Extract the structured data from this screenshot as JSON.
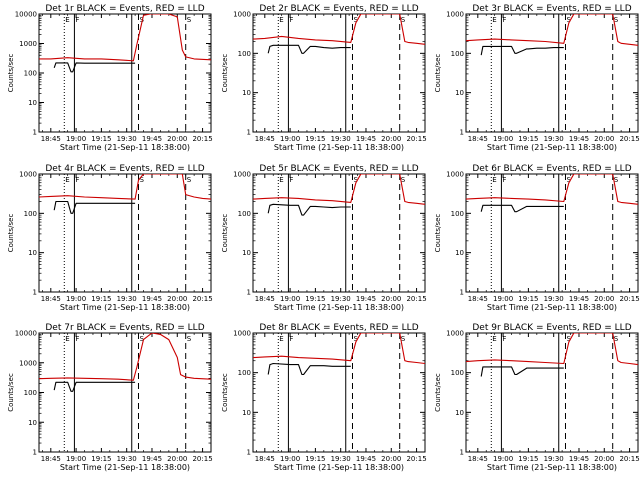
{
  "chart_data": [
    {
      "type": "line",
      "title": "Det 1r BLACK = Events, RED = LLD",
      "xlabel": "Start Time (21-Sep-11 18:38:00)",
      "ylabel": "Counts/sec",
      "yscale": "log",
      "ylim": [
        1,
        10000
      ],
      "xlim": [
        "18:38",
        "20:20"
      ],
      "y_ticks": [
        "1",
        "10",
        "100",
        "1000",
        "10000"
      ],
      "x_ticks": [
        "18:45",
        "19:00",
        "19:15",
        "19:30",
        "19:45",
        "20:00",
        "20:15"
      ],
      "markers": [
        "E",
        "F",
        "S",
        "S"
      ],
      "series": [
        {
          "color": "#000000",
          "x": [
            "18:47",
            "18:48",
            "18:50",
            "18:55",
            "18:57",
            "18:58",
            "19:00",
            "19:05",
            "19:08",
            "19:15",
            "19:20",
            "19:25",
            "19:30",
            "19:34",
            "19:35"
          ],
          "y": [
            150,
            220,
            220,
            220,
            110,
            110,
            220,
            215,
            215,
            215,
            215,
            215,
            215,
            215,
            215
          ]
        },
        {
          "color": "#cc0000",
          "x": [
            "18:38",
            "18:45",
            "18:55",
            "19:05",
            "19:15",
            "19:25",
            "19:34",
            "19:36",
            "19:40",
            "19:44",
            "19:50",
            "19:55",
            "20:00",
            "20:03",
            "20:05",
            "20:10",
            "20:20"
          ],
          "y": [
            300,
            300,
            330,
            300,
            300,
            280,
            260,
            900,
            9000,
            11000,
            11000,
            11000,
            8000,
            600,
            350,
            300,
            280
          ]
        }
      ]
    },
    {
      "type": "line",
      "title": "Det 2r BLACK = Events, RED = LLD",
      "xlabel": "Start Time (21-Sep-11 18:38:00)",
      "ylabel": "Counts/sec",
      "yscale": "log",
      "ylim": [
        1,
        1000
      ],
      "xlim": [
        "18:38",
        "20:20"
      ],
      "y_ticks": [
        "1",
        "10",
        "100",
        "1000"
      ],
      "x_ticks": [
        "18:45",
        "19:00",
        "19:15",
        "19:30",
        "19:45",
        "20:00",
        "20:15"
      ],
      "markers": [
        "E",
        "F",
        "S",
        "S"
      ],
      "series": [
        {
          "color": "#000000",
          "x": [
            "18:47",
            "18:48",
            "18:50",
            "18:55",
            "19:05",
            "19:07",
            "19:08",
            "19:12",
            "19:15",
            "19:20",
            "19:25",
            "19:30",
            "19:36"
          ],
          "y": [
            100,
            150,
            160,
            160,
            160,
            100,
            100,
            150,
            150,
            140,
            135,
            140,
            140
          ]
        },
        {
          "color": "#cc0000",
          "x": [
            "18:38",
            "18:45",
            "18:55",
            "19:05",
            "19:15",
            "19:25",
            "19:36",
            "19:39",
            "19:42",
            "19:50",
            "19:58",
            "20:05",
            "20:08",
            "20:10",
            "20:15",
            "20:20"
          ],
          "y": [
            230,
            240,
            270,
            240,
            220,
            210,
            190,
            600,
            1000,
            1000,
            1000,
            1000,
            200,
            190,
            180,
            170
          ]
        }
      ]
    },
    {
      "type": "line",
      "title": "Det 3r BLACK = Events, RED = LLD",
      "xlabel": "Start Time (21-Sep-11 18:38:00)",
      "ylabel": "Counts/sec",
      "yscale": "log",
      "ylim": [
        1,
        1000
      ],
      "xlim": [
        "18:38",
        "20:20"
      ],
      "y_ticks": [
        "1",
        "10",
        "100",
        "1000"
      ],
      "x_ticks": [
        "18:45",
        "19:00",
        "19:15",
        "19:30",
        "19:45",
        "20:00",
        "20:15"
      ],
      "markers": [
        "E",
        "F",
        "S",
        "S"
      ],
      "series": [
        {
          "color": "#000000",
          "x": [
            "18:47",
            "18:48",
            "18:50",
            "19:00",
            "19:05",
            "19:07",
            "19:08",
            "19:14",
            "19:15",
            "19:20",
            "19:25",
            "19:30",
            "19:36"
          ],
          "y": [
            90,
            150,
            150,
            150,
            150,
            100,
            100,
            130,
            130,
            135,
            135,
            140,
            140
          ]
        },
        {
          "color": "#cc0000",
          "x": [
            "18:38",
            "18:45",
            "18:55",
            "19:05",
            "19:15",
            "19:25",
            "19:36",
            "19:39",
            "19:42",
            "19:50",
            "19:58",
            "20:05",
            "20:08",
            "20:10",
            "20:15",
            "20:20"
          ],
          "y": [
            210,
            220,
            230,
            220,
            210,
            200,
            180,
            600,
            1000,
            1000,
            1000,
            1000,
            200,
            180,
            170,
            160
          ]
        }
      ]
    },
    {
      "type": "line",
      "title": "Det 4r BLACK = Events, RED = LLD",
      "xlabel": "Start Time (21-Sep-11 18:38:00)",
      "ylabel": "Counts/sec",
      "yscale": "log",
      "ylim": [
        1,
        1000
      ],
      "xlim": [
        "18:38",
        "20:20"
      ],
      "y_ticks": [
        "1",
        "10",
        "100",
        "1000"
      ],
      "x_ticks": [
        "18:45",
        "19:00",
        "19:15",
        "19:30",
        "19:45",
        "20:00",
        "20:15"
      ],
      "markers": [
        "E",
        "F",
        "S",
        "S"
      ],
      "series": [
        {
          "color": "#000000",
          "x": [
            "18:47",
            "18:48",
            "18:50",
            "18:55",
            "18:57",
            "18:58",
            "19:00",
            "19:05",
            "19:15",
            "19:25",
            "19:35"
          ],
          "y": [
            120,
            200,
            200,
            200,
            100,
            100,
            180,
            180,
            180,
            180,
            180
          ]
        },
        {
          "color": "#cc0000",
          "x": [
            "18:38",
            "18:45",
            "18:55",
            "19:05",
            "19:15",
            "19:25",
            "19:35",
            "19:37",
            "19:40",
            "19:50",
            "20:00",
            "20:03",
            "20:05",
            "20:10",
            "20:15",
            "20:20"
          ],
          "y": [
            260,
            270,
            280,
            260,
            250,
            240,
            230,
            700,
            1000,
            1000,
            1000,
            1000,
            300,
            260,
            240,
            230
          ]
        }
      ]
    },
    {
      "type": "line",
      "title": "Det 5r BLACK = Events, RED = LLD",
      "xlabel": "Start Time (21-Sep-11 18:38:00)",
      "ylabel": "Counts/sec",
      "yscale": "log",
      "ylim": [
        1,
        1000
      ],
      "xlim": [
        "18:38",
        "20:20"
      ],
      "y_ticks": [
        "1",
        "10",
        "100",
        "1000"
      ],
      "x_ticks": [
        "18:45",
        "19:00",
        "19:15",
        "19:30",
        "19:45",
        "20:00",
        "20:15"
      ],
      "markers": [
        "E",
        "F",
        "S",
        "S"
      ],
      "series": [
        {
          "color": "#000000",
          "x": [
            "18:47",
            "18:48",
            "18:50",
            "19:00",
            "19:05",
            "19:07",
            "19:08",
            "19:12",
            "19:15",
            "19:20",
            "19:25",
            "19:30",
            "19:36"
          ],
          "y": [
            100,
            160,
            170,
            160,
            160,
            90,
            90,
            150,
            150,
            145,
            140,
            145,
            145
          ]
        },
        {
          "color": "#cc0000",
          "x": [
            "18:38",
            "18:45",
            "18:55",
            "19:05",
            "19:15",
            "19:25",
            "19:36",
            "19:39",
            "19:42",
            "19:50",
            "19:58",
            "20:05",
            "20:08",
            "20:10",
            "20:15",
            "20:20"
          ],
          "y": [
            230,
            240,
            250,
            240,
            220,
            210,
            190,
            600,
            1000,
            1000,
            1000,
            1000,
            200,
            190,
            180,
            170
          ]
        }
      ]
    },
    {
      "type": "line",
      "title": "Det 6r BLACK = Events, RED = LLD",
      "xlabel": "Start Time (21-Sep-11 18:38:00)",
      "ylabel": "Counts/sec",
      "yscale": "log",
      "ylim": [
        1,
        1000
      ],
      "xlim": [
        "18:38",
        "20:20"
      ],
      "y_ticks": [
        "1",
        "10",
        "100",
        "1000"
      ],
      "x_ticks": [
        "18:45",
        "19:00",
        "19:15",
        "19:30",
        "19:45",
        "20:00",
        "20:15"
      ],
      "markers": [
        "E",
        "F",
        "S",
        "S"
      ],
      "series": [
        {
          "color": "#000000",
          "x": [
            "18:47",
            "18:48",
            "18:50",
            "19:00",
            "19:05",
            "19:07",
            "19:08",
            "19:14",
            "19:15",
            "19:20",
            "19:25",
            "19:30",
            "19:36"
          ],
          "y": [
            110,
            160,
            160,
            160,
            160,
            110,
            110,
            150,
            150,
            150,
            150,
            150,
            150
          ]
        },
        {
          "color": "#cc0000",
          "x": [
            "18:38",
            "18:45",
            "18:55",
            "19:05",
            "19:15",
            "19:25",
            "19:36",
            "19:39",
            "19:42",
            "19:50",
            "19:58",
            "20:05",
            "20:08",
            "20:10",
            "20:15",
            "20:20"
          ],
          "y": [
            230,
            240,
            250,
            240,
            230,
            220,
            200,
            600,
            1000,
            1000,
            1000,
            1000,
            200,
            190,
            180,
            170
          ]
        }
      ]
    },
    {
      "type": "line",
      "title": "Det 7r BLACK = Events, RED = LLD",
      "xlabel": "Start Time (21-Sep-11 18:38:00)",
      "ylabel": "Counts/sec",
      "yscale": "log",
      "ylim": [
        1,
        10000
      ],
      "xlim": [
        "18:38",
        "20:20"
      ],
      "y_ticks": [
        "1",
        "10",
        "100",
        "1000",
        "10000"
      ],
      "x_ticks": [
        "18:45",
        "19:00",
        "19:15",
        "19:30",
        "19:45",
        "20:00",
        "20:15"
      ],
      "markers": [
        "E",
        "F",
        "S",
        "S"
      ],
      "series": [
        {
          "color": "#000000",
          "x": [
            "18:47",
            "18:48",
            "18:50",
            "18:55",
            "18:57",
            "18:58",
            "19:00",
            "19:05",
            "19:08",
            "19:15",
            "19:20",
            "19:25",
            "19:30",
            "19:34",
            "19:35"
          ],
          "y": [
            120,
            220,
            220,
            220,
            110,
            110,
            220,
            220,
            220,
            220,
            220,
            220,
            220,
            220,
            220
          ]
        },
        {
          "color": "#cc0000",
          "x": [
            "18:38",
            "18:45",
            "18:55",
            "19:05",
            "19:15",
            "19:25",
            "19:34",
            "19:36",
            "19:40",
            "19:45",
            "19:50",
            "19:55",
            "20:00",
            "20:02",
            "20:05",
            "20:10",
            "20:20"
          ],
          "y": [
            290,
            300,
            310,
            300,
            290,
            280,
            260,
            700,
            6000,
            10000,
            9000,
            6000,
            1500,
            400,
            330,
            300,
            280
          ]
        }
      ]
    },
    {
      "type": "line",
      "title": "Det 8r BLACK = Events, RED = LLD",
      "xlabel": "Start Time (21-Sep-11 18:38:00)",
      "ylabel": "Counts/sec",
      "yscale": "log",
      "ylim": [
        1,
        1000
      ],
      "xlim": [
        "18:38",
        "20:20"
      ],
      "y_ticks": [
        "1",
        "10",
        "100",
        "1000"
      ],
      "x_ticks": [
        "18:45",
        "19:00",
        "19:15",
        "19:30",
        "19:45",
        "20:00",
        "20:15"
      ],
      "markers": [
        "E",
        "F",
        "S",
        "S"
      ],
      "series": [
        {
          "color": "#000000",
          "x": [
            "18:47",
            "18:48",
            "18:50",
            "19:00",
            "19:05",
            "19:07",
            "19:08",
            "19:12",
            "19:15",
            "19:20",
            "19:25",
            "19:30",
            "19:36"
          ],
          "y": [
            90,
            160,
            170,
            160,
            160,
            90,
            90,
            150,
            150,
            150,
            145,
            145,
            145
          ]
        },
        {
          "color": "#cc0000",
          "x": [
            "18:38",
            "18:45",
            "18:55",
            "19:05",
            "19:15",
            "19:25",
            "19:36",
            "19:39",
            "19:42",
            "19:50",
            "19:58",
            "20:05",
            "20:08",
            "20:10",
            "20:15",
            "20:20"
          ],
          "y": [
            240,
            250,
            260,
            240,
            230,
            220,
            200,
            600,
            1000,
            1000,
            1000,
            1000,
            200,
            190,
            180,
            170
          ]
        }
      ]
    },
    {
      "type": "line",
      "title": "Det 9r BLACK = Events, RED = LLD",
      "xlabel": "Start Time (21-Sep-11 18:38:00)",
      "ylabel": "Counts/sec",
      "yscale": "log",
      "ylim": [
        1,
        1000
      ],
      "xlim": [
        "18:38",
        "20:20"
      ],
      "y_ticks": [
        "1",
        "10",
        "100",
        "1000"
      ],
      "x_ticks": [
        "18:45",
        "19:00",
        "19:15",
        "19:30",
        "19:45",
        "20:00",
        "20:15"
      ],
      "markers": [
        "E",
        "F",
        "S",
        "S"
      ],
      "series": [
        {
          "color": "#000000",
          "x": [
            "18:47",
            "18:48",
            "18:50",
            "19:00",
            "19:05",
            "19:07",
            "19:08",
            "19:14",
            "19:15",
            "19:20",
            "19:25",
            "19:30",
            "19:36"
          ],
          "y": [
            80,
            140,
            140,
            140,
            140,
            90,
            90,
            130,
            130,
            130,
            130,
            130,
            130
          ]
        },
        {
          "color": "#cc0000",
          "x": [
            "18:38",
            "18:45",
            "18:55",
            "19:05",
            "19:15",
            "19:25",
            "19:36",
            "19:39",
            "19:42",
            "19:50",
            "19:58",
            "20:05",
            "20:08",
            "20:10",
            "20:15",
            "20:20"
          ],
          "y": [
            190,
            200,
            210,
            200,
            190,
            180,
            170,
            600,
            1000,
            1000,
            1000,
            1000,
            200,
            180,
            170,
            160
          ]
        }
      ]
    }
  ],
  "vlines": [
    {
      "time": "18:53",
      "style": "dotted"
    },
    {
      "time": "18:59",
      "style": "solid"
    },
    {
      "time": "19:33",
      "style": "solid"
    },
    {
      "time": "19:37",
      "style": "dashed"
    },
    {
      "time": "20:05",
      "style": "dashed"
    }
  ]
}
